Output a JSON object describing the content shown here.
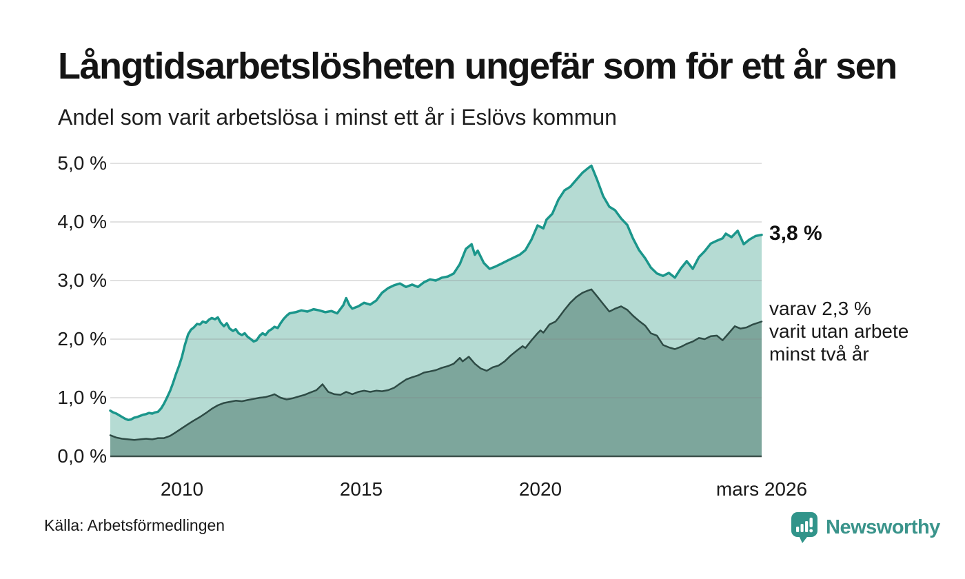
{
  "header": {
    "title": "Långtidsarbetslösheten ungefär som för ett år sen",
    "subtitle": "Andel som varit arbetslösa i minst ett år i Eslövs kommun"
  },
  "chart_data": {
    "type": "area",
    "title": "Långtidsarbetslösheten ungefär som för ett år sen",
    "subtitle": "Andel som varit arbetslösa i minst ett år i Eslövs kommun",
    "unit": "%",
    "grid": "horizontal",
    "legend": "none",
    "x_axis": {
      "range": [
        2008.0,
        2026.17
      ],
      "tick_labels": [
        "2010",
        "2015",
        "2020",
        "mars 2026"
      ],
      "tick_values": [
        2010,
        2015,
        2020,
        2026.17
      ]
    },
    "y_axis": {
      "range": [
        0,
        5
      ],
      "tick_labels": [
        "5,0 %",
        "4,0 %",
        "3,0 %",
        "2,0 %",
        "1,0 %",
        "0,0 %"
      ],
      "tick_values": [
        5,
        4,
        3,
        2,
        1,
        0
      ]
    },
    "series": [
      {
        "description": "Andel som varit arbetslösa i minst ett år",
        "end_value_label": "3,8 %",
        "end_value": 3.8,
        "line_color": "#1b968b",
        "fill_color": "#b5dbd3",
        "line_width": 3.5,
        "points": [
          [
            2008.0,
            0.78
          ],
          [
            2008.08,
            0.75
          ],
          [
            2008.17,
            0.73
          ],
          [
            2008.25,
            0.7
          ],
          [
            2008.33,
            0.67
          ],
          [
            2008.42,
            0.64
          ],
          [
            2008.5,
            0.62
          ],
          [
            2008.58,
            0.63
          ],
          [
            2008.67,
            0.66
          ],
          [
            2008.75,
            0.67
          ],
          [
            2008.83,
            0.69
          ],
          [
            2008.92,
            0.71
          ],
          [
            2009.0,
            0.72
          ],
          [
            2009.08,
            0.74
          ],
          [
            2009.17,
            0.73
          ],
          [
            2009.25,
            0.75
          ],
          [
            2009.33,
            0.76
          ],
          [
            2009.42,
            0.82
          ],
          [
            2009.5,
            0.9
          ],
          [
            2009.58,
            1.0
          ],
          [
            2009.67,
            1.12
          ],
          [
            2009.75,
            1.25
          ],
          [
            2009.83,
            1.4
          ],
          [
            2009.92,
            1.55
          ],
          [
            2010.0,
            1.7
          ],
          [
            2010.08,
            1.9
          ],
          [
            2010.17,
            2.08
          ],
          [
            2010.25,
            2.16
          ],
          [
            2010.33,
            2.2
          ],
          [
            2010.42,
            2.26
          ],
          [
            2010.5,
            2.25
          ],
          [
            2010.58,
            2.3
          ],
          [
            2010.67,
            2.28
          ],
          [
            2010.75,
            2.33
          ],
          [
            2010.83,
            2.36
          ],
          [
            2010.92,
            2.34
          ],
          [
            2011.0,
            2.37
          ],
          [
            2011.08,
            2.28
          ],
          [
            2011.17,
            2.22
          ],
          [
            2011.25,
            2.27
          ],
          [
            2011.33,
            2.18
          ],
          [
            2011.42,
            2.14
          ],
          [
            2011.5,
            2.17
          ],
          [
            2011.58,
            2.1
          ],
          [
            2011.67,
            2.07
          ],
          [
            2011.75,
            2.1
          ],
          [
            2011.83,
            2.04
          ],
          [
            2011.92,
            2.0
          ],
          [
            2012.0,
            1.96
          ],
          [
            2012.08,
            1.98
          ],
          [
            2012.17,
            2.06
          ],
          [
            2012.25,
            2.1
          ],
          [
            2012.33,
            2.07
          ],
          [
            2012.42,
            2.14
          ],
          [
            2012.5,
            2.17
          ],
          [
            2012.58,
            2.21
          ],
          [
            2012.67,
            2.19
          ],
          [
            2012.75,
            2.27
          ],
          [
            2012.83,
            2.34
          ],
          [
            2012.92,
            2.4
          ],
          [
            2013.0,
            2.44
          ],
          [
            2013.17,
            2.46
          ],
          [
            2013.33,
            2.49
          ],
          [
            2013.5,
            2.47
          ],
          [
            2013.67,
            2.51
          ],
          [
            2013.83,
            2.49
          ],
          [
            2014.0,
            2.46
          ],
          [
            2014.17,
            2.48
          ],
          [
            2014.33,
            2.44
          ],
          [
            2014.5,
            2.58
          ],
          [
            2014.58,
            2.7
          ],
          [
            2014.67,
            2.58
          ],
          [
            2014.75,
            2.52
          ],
          [
            2014.92,
            2.56
          ],
          [
            2015.08,
            2.62
          ],
          [
            2015.25,
            2.59
          ],
          [
            2015.42,
            2.66
          ],
          [
            2015.58,
            2.79
          ],
          [
            2015.75,
            2.87
          ],
          [
            2015.92,
            2.92
          ],
          [
            2016.08,
            2.95
          ],
          [
            2016.25,
            2.89
          ],
          [
            2016.42,
            2.93
          ],
          [
            2016.58,
            2.89
          ],
          [
            2016.75,
            2.97
          ],
          [
            2016.92,
            3.02
          ],
          [
            2017.08,
            3.0
          ],
          [
            2017.25,
            3.05
          ],
          [
            2017.42,
            3.07
          ],
          [
            2017.58,
            3.12
          ],
          [
            2017.75,
            3.28
          ],
          [
            2017.92,
            3.54
          ],
          [
            2018.08,
            3.62
          ],
          [
            2018.17,
            3.44
          ],
          [
            2018.25,
            3.51
          ],
          [
            2018.42,
            3.3
          ],
          [
            2018.58,
            3.2
          ],
          [
            2018.75,
            3.24
          ],
          [
            2018.92,
            3.29
          ],
          [
            2019.08,
            3.34
          ],
          [
            2019.25,
            3.39
          ],
          [
            2019.42,
            3.44
          ],
          [
            2019.58,
            3.52
          ],
          [
            2019.75,
            3.7
          ],
          [
            2019.92,
            3.94
          ],
          [
            2020.08,
            3.89
          ],
          [
            2020.17,
            4.04
          ],
          [
            2020.33,
            4.14
          ],
          [
            2020.5,
            4.38
          ],
          [
            2020.67,
            4.54
          ],
          [
            2020.83,
            4.6
          ],
          [
            2021.0,
            4.72
          ],
          [
            2021.17,
            4.84
          ],
          [
            2021.33,
            4.92
          ],
          [
            2021.42,
            4.96
          ],
          [
            2021.58,
            4.72
          ],
          [
            2021.75,
            4.44
          ],
          [
            2021.92,
            4.26
          ],
          [
            2022.08,
            4.2
          ],
          [
            2022.25,
            4.06
          ],
          [
            2022.42,
            3.95
          ],
          [
            2022.58,
            3.72
          ],
          [
            2022.75,
            3.52
          ],
          [
            2022.92,
            3.38
          ],
          [
            2023.08,
            3.22
          ],
          [
            2023.25,
            3.12
          ],
          [
            2023.42,
            3.08
          ],
          [
            2023.58,
            3.13
          ],
          [
            2023.75,
            3.05
          ],
          [
            2023.92,
            3.21
          ],
          [
            2024.08,
            3.33
          ],
          [
            2024.25,
            3.2
          ],
          [
            2024.42,
            3.4
          ],
          [
            2024.58,
            3.5
          ],
          [
            2024.75,
            3.63
          ],
          [
            2024.92,
            3.68
          ],
          [
            2025.08,
            3.72
          ],
          [
            2025.17,
            3.8
          ],
          [
            2025.33,
            3.74
          ],
          [
            2025.5,
            3.85
          ],
          [
            2025.67,
            3.62
          ],
          [
            2025.83,
            3.7
          ],
          [
            2026.0,
            3.76
          ],
          [
            2026.17,
            3.78
          ]
        ]
      },
      {
        "description": "varav varit utan arbete minst två år",
        "end_value_label": "varav 2,3 % varit utan arbete minst två år",
        "end_value": 2.3,
        "line_color": "#2e4b45",
        "fill_color": "#7da69c",
        "line_width": 2.5,
        "points": [
          [
            2008.0,
            0.36
          ],
          [
            2008.17,
            0.32
          ],
          [
            2008.33,
            0.3
          ],
          [
            2008.5,
            0.29
          ],
          [
            2008.67,
            0.28
          ],
          [
            2008.83,
            0.29
          ],
          [
            2009.0,
            0.3
          ],
          [
            2009.17,
            0.29
          ],
          [
            2009.33,
            0.31
          ],
          [
            2009.5,
            0.31
          ],
          [
            2009.67,
            0.35
          ],
          [
            2009.83,
            0.41
          ],
          [
            2010.0,
            0.48
          ],
          [
            2010.17,
            0.55
          ],
          [
            2010.33,
            0.61
          ],
          [
            2010.5,
            0.67
          ],
          [
            2010.67,
            0.74
          ],
          [
            2010.83,
            0.81
          ],
          [
            2011.0,
            0.87
          ],
          [
            2011.17,
            0.91
          ],
          [
            2011.33,
            0.93
          ],
          [
            2011.5,
            0.95
          ],
          [
            2011.67,
            0.94
          ],
          [
            2011.83,
            0.96
          ],
          [
            2012.0,
            0.98
          ],
          [
            2012.17,
            1.0
          ],
          [
            2012.33,
            1.01
          ],
          [
            2012.5,
            1.04
          ],
          [
            2012.58,
            1.06
          ],
          [
            2012.75,
            1.0
          ],
          [
            2012.92,
            0.97
          ],
          [
            2013.08,
            0.99
          ],
          [
            2013.25,
            1.02
          ],
          [
            2013.42,
            1.05
          ],
          [
            2013.58,
            1.09
          ],
          [
            2013.75,
            1.13
          ],
          [
            2013.92,
            1.23
          ],
          [
            2014.08,
            1.1
          ],
          [
            2014.25,
            1.06
          ],
          [
            2014.42,
            1.05
          ],
          [
            2014.58,
            1.1
          ],
          [
            2014.75,
            1.06
          ],
          [
            2014.92,
            1.1
          ],
          [
            2015.08,
            1.12
          ],
          [
            2015.25,
            1.1
          ],
          [
            2015.42,
            1.12
          ],
          [
            2015.58,
            1.11
          ],
          [
            2015.75,
            1.13
          ],
          [
            2015.92,
            1.17
          ],
          [
            2016.08,
            1.24
          ],
          [
            2016.25,
            1.31
          ],
          [
            2016.42,
            1.35
          ],
          [
            2016.58,
            1.38
          ],
          [
            2016.75,
            1.43
          ],
          [
            2016.92,
            1.45
          ],
          [
            2017.08,
            1.47
          ],
          [
            2017.25,
            1.51
          ],
          [
            2017.42,
            1.54
          ],
          [
            2017.58,
            1.58
          ],
          [
            2017.75,
            1.68
          ],
          [
            2017.83,
            1.62
          ],
          [
            2018.0,
            1.7
          ],
          [
            2018.17,
            1.58
          ],
          [
            2018.33,
            1.5
          ],
          [
            2018.5,
            1.46
          ],
          [
            2018.67,
            1.52
          ],
          [
            2018.83,
            1.55
          ],
          [
            2019.0,
            1.62
          ],
          [
            2019.17,
            1.72
          ],
          [
            2019.33,
            1.8
          ],
          [
            2019.5,
            1.88
          ],
          [
            2019.58,
            1.85
          ],
          [
            2019.75,
            1.98
          ],
          [
            2019.92,
            2.1
          ],
          [
            2020.0,
            2.15
          ],
          [
            2020.08,
            2.11
          ],
          [
            2020.25,
            2.25
          ],
          [
            2020.42,
            2.3
          ],
          [
            2020.5,
            2.36
          ],
          [
            2020.67,
            2.5
          ],
          [
            2020.83,
            2.62
          ],
          [
            2021.0,
            2.72
          ],
          [
            2021.17,
            2.79
          ],
          [
            2021.33,
            2.83
          ],
          [
            2021.42,
            2.85
          ],
          [
            2021.58,
            2.73
          ],
          [
            2021.75,
            2.6
          ],
          [
            2021.92,
            2.47
          ],
          [
            2022.08,
            2.52
          ],
          [
            2022.25,
            2.56
          ],
          [
            2022.42,
            2.5
          ],
          [
            2022.58,
            2.4
          ],
          [
            2022.75,
            2.31
          ],
          [
            2022.92,
            2.23
          ],
          [
            2023.08,
            2.1
          ],
          [
            2023.25,
            2.06
          ],
          [
            2023.42,
            1.9
          ],
          [
            2023.58,
            1.86
          ],
          [
            2023.75,
            1.83
          ],
          [
            2023.92,
            1.87
          ],
          [
            2024.08,
            1.92
          ],
          [
            2024.25,
            1.96
          ],
          [
            2024.42,
            2.02
          ],
          [
            2024.58,
            2.0
          ],
          [
            2024.75,
            2.05
          ],
          [
            2024.92,
            2.06
          ],
          [
            2025.08,
            1.98
          ],
          [
            2025.25,
            2.1
          ],
          [
            2025.42,
            2.22
          ],
          [
            2025.58,
            2.18
          ],
          [
            2025.75,
            2.2
          ],
          [
            2025.92,
            2.25
          ],
          [
            2026.17,
            2.3
          ]
        ]
      }
    ],
    "colors": {
      "gridline": "#cfcfcf",
      "baseline": "#3d504b",
      "background": "#ffffff"
    }
  },
  "annotations": {
    "series1_end_label": "3,8 %",
    "series2_end_label_lines": [
      "varav 2,3 %",
      "varit utan arbete",
      "minst två år"
    ]
  },
  "footer": {
    "source": "Källa: Arbetsförmedlingen",
    "brand_name": "Newsworthy",
    "brand_color": "#3a948b"
  }
}
